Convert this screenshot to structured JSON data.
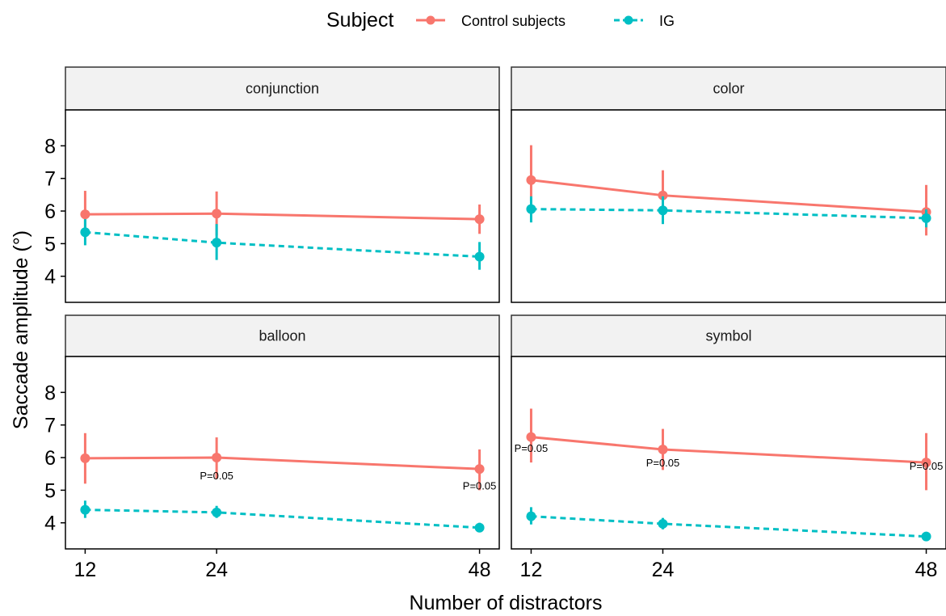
{
  "chart_data": {
    "type": "line",
    "xlabel": "Number of distractors",
    "ylabel": "Saccade amplitude (°)",
    "x": [
      12,
      24,
      48
    ],
    "xlim": [
      10.2,
      49.8
    ],
    "ylim": [
      3.2,
      9.1
    ],
    "yticks": [
      4,
      5,
      6,
      7,
      8
    ],
    "xticks": [
      12,
      24,
      48
    ],
    "legend": {
      "title": "Subject",
      "placement": "top",
      "entries": [
        {
          "name": "Control subjects",
          "color": "#F8766D",
          "linetype": "solid"
        },
        {
          "name": "IG",
          "color": "#00BFC4",
          "linetype": "dashed"
        }
      ]
    },
    "panels": [
      {
        "name": "conjunction",
        "series": [
          {
            "name": "Control subjects",
            "values": [
              5.9,
              5.92,
              5.75
            ],
            "lower": [
              5.2,
              5.25,
              5.3
            ],
            "upper": [
              6.62,
              6.6,
              6.2
            ]
          },
          {
            "name": "IG",
            "values": [
              5.35,
              5.03,
              4.6
            ],
            "lower": [
              4.95,
              4.5,
              4.2
            ],
            "upper": [
              5.75,
              5.6,
              5.05
            ]
          }
        ],
        "annotations": []
      },
      {
        "name": "color",
        "series": [
          {
            "name": "Control subjects",
            "values": [
              6.95,
              6.48,
              5.97
            ],
            "lower": [
              6.3,
              5.85,
              5.25
            ],
            "upper": [
              8.02,
              7.25,
              6.8
            ]
          },
          {
            "name": "IG",
            "values": [
              6.06,
              6.02,
              5.78
            ],
            "lower": [
              5.65,
              5.6,
              5.5
            ],
            "upper": [
              6.45,
              6.45,
              6.05
            ]
          }
        ],
        "annotations": []
      },
      {
        "name": "balloon",
        "series": [
          {
            "name": "Control subjects",
            "values": [
              5.98,
              6.0,
              5.65
            ],
            "lower": [
              5.2,
              5.35,
              5.0
            ],
            "upper": [
              6.75,
              6.62,
              6.25
            ]
          },
          {
            "name": "IG",
            "values": [
              4.4,
              4.32,
              3.85
            ],
            "lower": [
              4.15,
              4.15,
              3.72
            ],
            "upper": [
              4.68,
              4.52,
              4.0
            ]
          }
        ],
        "annotations": [
          {
            "text": "P=0.05",
            "x": 24,
            "y": 5.45
          },
          {
            "text": "P=0.05",
            "x": 48,
            "y": 5.15
          }
        ]
      },
      {
        "name": "symbol",
        "series": [
          {
            "name": "Control subjects",
            "values": [
              6.63,
              6.25,
              5.85
            ],
            "lower": [
              5.85,
              5.62,
              5.0
            ],
            "upper": [
              7.5,
              6.88,
              6.75
            ]
          },
          {
            "name": "IG",
            "values": [
              4.2,
              3.97,
              3.58
            ],
            "lower": [
              3.95,
              3.8,
              3.5
            ],
            "upper": [
              4.48,
              4.15,
              3.7
            ]
          }
        ],
        "annotations": [
          {
            "text": "P=0.05",
            "x": 12,
            "y": 6.3
          },
          {
            "text": "P=0.05",
            "x": 24,
            "y": 5.85
          },
          {
            "text": "P=0.05",
            "x": 48,
            "y": 5.75
          }
        ]
      }
    ]
  }
}
